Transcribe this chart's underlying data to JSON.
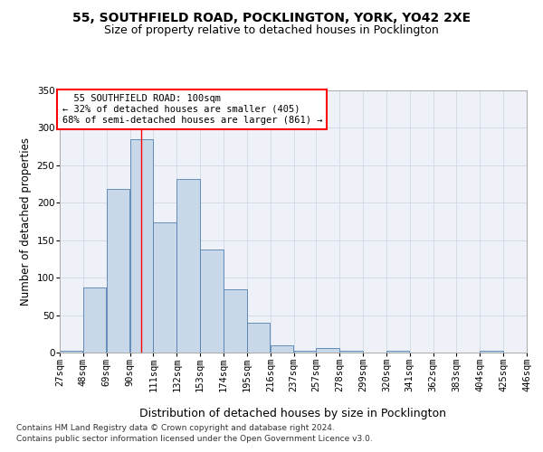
{
  "title1": "55, SOUTHFIELD ROAD, POCKLINGTON, YORK, YO42 2XE",
  "title2": "Size of property relative to detached houses in Pocklington",
  "xlabel": "Distribution of detached houses by size in Pocklington",
  "ylabel": "Number of detached properties",
  "footnote1": "Contains HM Land Registry data © Crown copyright and database right 2024.",
  "footnote2": "Contains public sector information licensed under the Open Government Licence v3.0.",
  "bins": [
    27,
    48,
    69,
    90,
    111,
    132,
    153,
    174,
    195,
    216,
    237,
    257,
    278,
    299,
    320,
    341,
    362,
    383,
    404,
    425,
    446
  ],
  "bin_labels": [
    "27sqm",
    "48sqm",
    "69sqm",
    "90sqm",
    "111sqm",
    "132sqm",
    "153sqm",
    "174sqm",
    "195sqm",
    "216sqm",
    "237sqm",
    "257sqm",
    "278sqm",
    "299sqm",
    "320sqm",
    "341sqm",
    "362sqm",
    "383sqm",
    "404sqm",
    "425sqm",
    "446sqm"
  ],
  "values": [
    3,
    87,
    218,
    285,
    174,
    232,
    137,
    85,
    40,
    10,
    2,
    6,
    2,
    0,
    2,
    0,
    0,
    0,
    2,
    0
  ],
  "bar_color": "#c8d8e8",
  "bar_edge_color": "#5080b0",
  "annotation_box_text": "  55 SOUTHFIELD ROAD: 100sqm\n← 32% of detached houses are smaller (405)\n68% of semi-detached houses are larger (861) →",
  "annotation_box_color": "white",
  "annotation_box_edge_color": "red",
  "vline_x": 100,
  "vline_color": "red",
  "grid_color": "#d0d8e8",
  "background_color": "#eef2f8",
  "ylim": [
    0,
    350
  ],
  "yticks": [
    0,
    50,
    100,
    150,
    200,
    250,
    300,
    350
  ],
  "title_fontsize": 10,
  "subtitle_fontsize": 9,
  "axis_label_fontsize": 8.5,
  "tick_fontsize": 7.5,
  "annotation_fontsize": 7.5,
  "footnote_fontsize": 6.5
}
